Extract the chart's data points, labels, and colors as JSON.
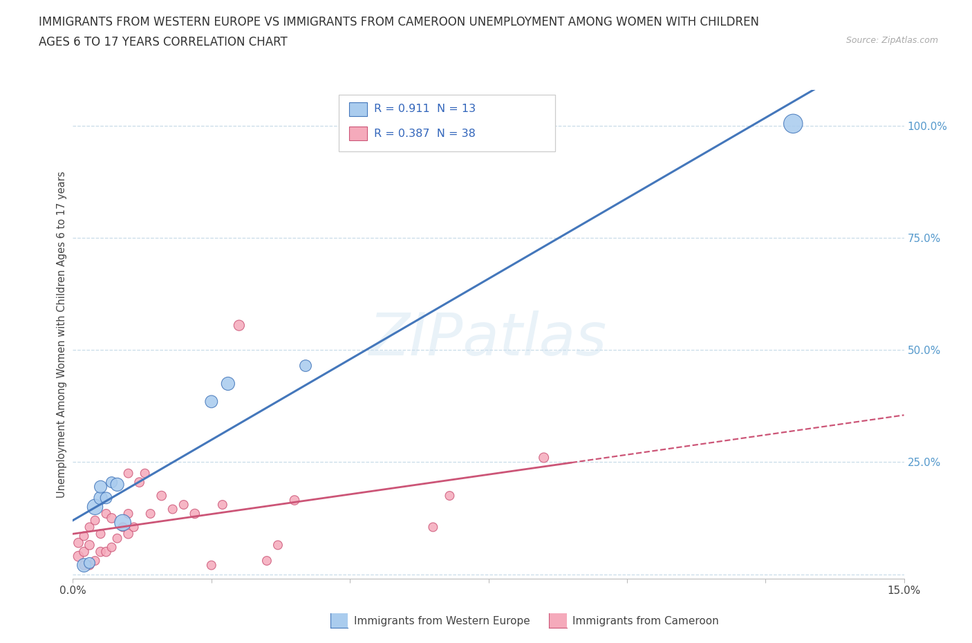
{
  "title_line1": "IMMIGRANTS FROM WESTERN EUROPE VS IMMIGRANTS FROM CAMEROON UNEMPLOYMENT AMONG WOMEN WITH CHILDREN",
  "title_line2": "AGES 6 TO 17 YEARS CORRELATION CHART",
  "source": "Source: ZipAtlas.com",
  "ylabel": "Unemployment Among Women with Children Ages 6 to 17 years",
  "watermark": "ZIPatlas",
  "legend_label1": "Immigrants from Western Europe",
  "legend_label2": "Immigrants from Cameroon",
  "r1": 0.911,
  "n1": 13,
  "r2": 0.387,
  "n2": 38,
  "blue_face": "#aaccee",
  "blue_edge": "#4477bb",
  "pink_face": "#f5aabb",
  "pink_edge": "#cc5577",
  "blue_scatter_x": [
    0.002,
    0.003,
    0.004,
    0.005,
    0.005,
    0.006,
    0.007,
    0.008,
    0.009,
    0.025,
    0.028,
    0.042,
    0.13
  ],
  "blue_scatter_y": [
    0.02,
    0.025,
    0.15,
    0.17,
    0.195,
    0.17,
    0.205,
    0.2,
    0.115,
    0.385,
    0.425,
    0.465,
    1.005
  ],
  "blue_scatter_sizes": [
    200,
    130,
    260,
    190,
    165,
    145,
    130,
    190,
    290,
    165,
    190,
    145,
    390
  ],
  "pink_scatter_x": [
    0.001,
    0.001,
    0.002,
    0.002,
    0.002,
    0.003,
    0.003,
    0.003,
    0.004,
    0.004,
    0.005,
    0.005,
    0.006,
    0.006,
    0.007,
    0.007,
    0.008,
    0.009,
    0.01,
    0.01,
    0.011,
    0.012,
    0.013,
    0.014,
    0.016,
    0.018,
    0.02,
    0.022,
    0.025,
    0.027,
    0.03,
    0.035,
    0.037,
    0.04,
    0.065,
    0.068,
    0.085,
    0.01
  ],
  "pink_scatter_y": [
    0.04,
    0.07,
    0.02,
    0.05,
    0.085,
    0.02,
    0.065,
    0.105,
    0.03,
    0.12,
    0.05,
    0.09,
    0.05,
    0.135,
    0.06,
    0.125,
    0.08,
    0.105,
    0.09,
    0.135,
    0.105,
    0.205,
    0.225,
    0.135,
    0.175,
    0.145,
    0.155,
    0.135,
    0.02,
    0.155,
    0.555,
    0.03,
    0.065,
    0.165,
    0.105,
    0.175,
    0.26,
    0.225
  ],
  "pink_scatter_sizes": [
    110,
    95,
    85,
    95,
    85,
    85,
    95,
    85,
    85,
    85,
    95,
    85,
    95,
    85,
    85,
    95,
    85,
    85,
    95,
    85,
    85,
    95,
    85,
    85,
    95,
    85,
    85,
    95,
    85,
    85,
    120,
    85,
    85,
    95,
    85,
    85,
    100,
    85
  ],
  "xlim": [
    0,
    0.15
  ],
  "ylim": [
    -0.01,
    1.08
  ],
  "yticks": [
    0.0,
    0.25,
    0.5,
    0.75,
    1.0
  ],
  "ytick_right_labels": [
    "",
    "25.0%",
    "50.0%",
    "75.0%",
    "100.0%"
  ],
  "xticks": [
    0.0,
    0.025,
    0.05,
    0.075,
    0.1,
    0.125,
    0.15
  ],
  "xtick_labels": [
    "0.0%",
    "",
    "",
    "",
    "",
    "",
    "15.0%"
  ],
  "bg_color": "#ffffff",
  "grid_color": "#c8dce8",
  "right_tick_color": "#5599cc",
  "title_color": "#333333",
  "title_fontsize": 12,
  "axis_fontsize": 10.5,
  "tick_fontsize": 11,
  "source_color": "#aaaaaa",
  "legend_text_color": "#3366bb",
  "bottom_legend_color": "#444444"
}
